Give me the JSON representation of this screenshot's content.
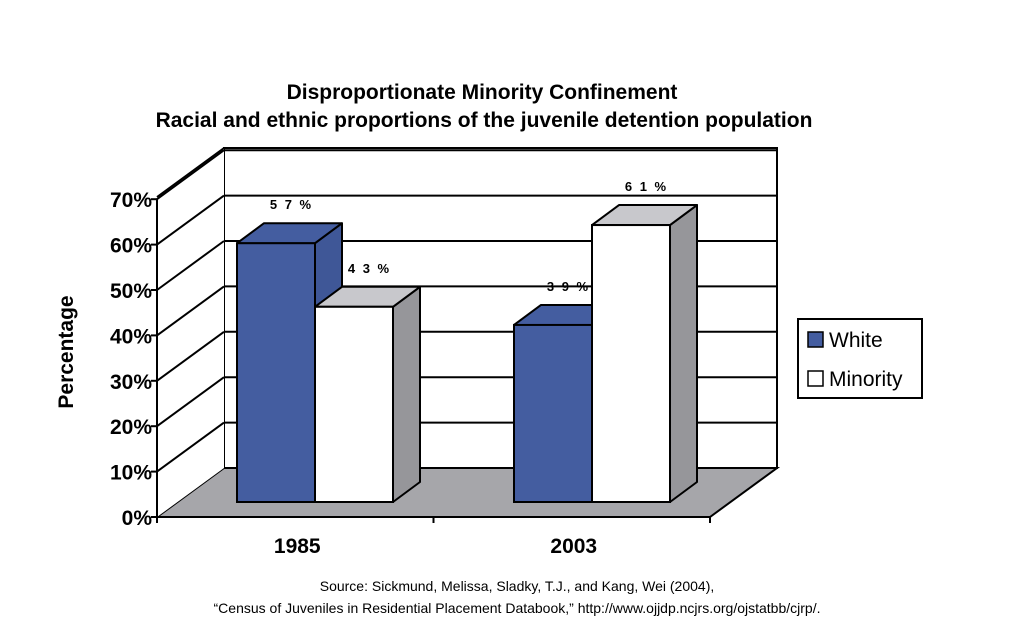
{
  "chart_data": {
    "type": "bar",
    "style": "3d-clustered",
    "title": "Disproportionate Minority Confinement",
    "subtitle": "Racial and ethnic proportions of the juvenile detention population",
    "xlabel": "",
    "ylabel": "Percentage",
    "categories": [
      "1985",
      "2003"
    ],
    "series": [
      {
        "name": "White",
        "values": [
          57,
          39
        ],
        "labels": [
          "5 7 %",
          "3 9 %"
        ],
        "color": "#4a5fa0"
      },
      {
        "name": "Minority",
        "values": [
          43,
          61
        ],
        "labels": [
          "4 3 %",
          "6 1 %"
        ],
        "color": "#ffffff"
      }
    ],
    "ylim": [
      0,
      70
    ],
    "yticks": [
      0,
      10,
      20,
      30,
      40,
      50,
      60,
      70
    ],
    "ytick_labels": [
      "0%",
      "10%",
      "20%",
      "30%",
      "40%",
      "50%",
      "60%",
      "70%"
    ],
    "grid": true,
    "legend": {
      "position": "right",
      "entries": [
        "White",
        "Minority"
      ]
    },
    "colors": {
      "floor": "#a6a6aa",
      "side_gray": "#96969a",
      "top_gray": "#c8c8cc",
      "blue_front": "#445da0",
      "blue_side": "#3f5797"
    }
  },
  "footer": {
    "source_line1": "Source: Sickmund, Melissa, Sladky, T.J., and Kang, Wei (2004),",
    "source_line2": "“Census of Juveniles in Residential Placement Databook,” http://www.ojjdp.ncjrs.org/ojstatbb/cjrp/."
  }
}
